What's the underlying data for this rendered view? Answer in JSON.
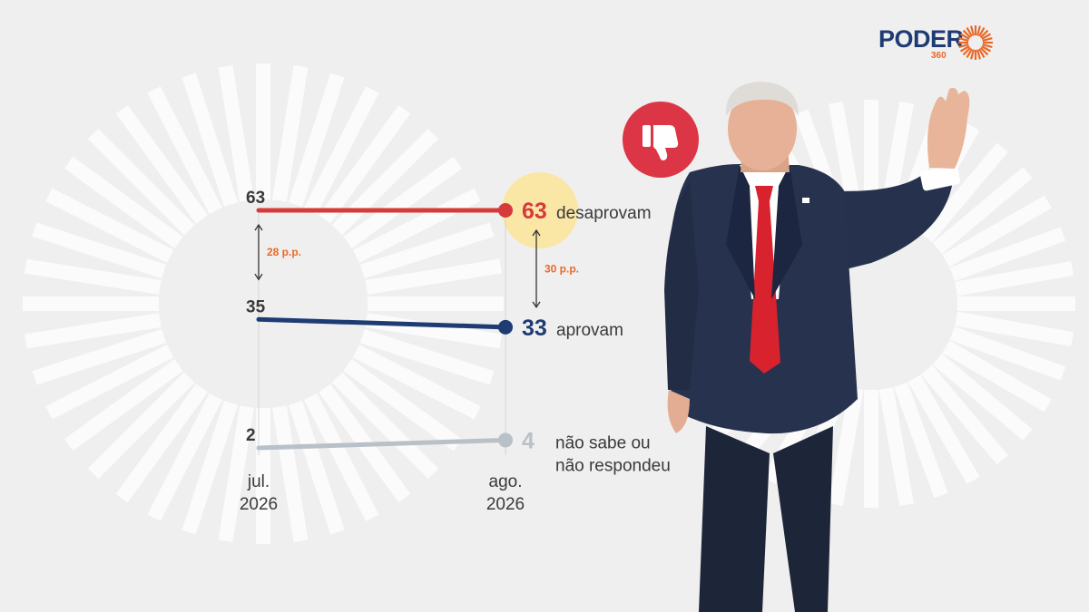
{
  "brand": {
    "name": "PODER",
    "sub": "360",
    "color": "#1f3b73",
    "accent": "#e86a2a"
  },
  "icon": {
    "name": "thumbs-down-icon",
    "color": "#dc3545"
  },
  "chart_data": {
    "type": "line",
    "title": "",
    "xlabel": "",
    "ylabel": "",
    "categories": [
      [
        "jul.",
        "2026"
      ],
      [
        "ago.",
        "2026"
      ]
    ],
    "series": [
      {
        "name": "desaprovam",
        "values": [
          63,
          63
        ],
        "color": "#d63a3a",
        "highlight": true
      },
      {
        "name": "aprovam",
        "values": [
          35,
          33
        ],
        "color": "#1f3b73"
      },
      {
        "name": "não sabe ou não respondeu",
        "label_lines": [
          "não sabe ou",
          "não respondeu"
        ],
        "values": [
          2,
          4
        ],
        "color": "#b9c1c8"
      }
    ],
    "annotations": [
      {
        "text": "28 p.p.",
        "at": "jul. 2026",
        "from": "desaprovam",
        "to": "aprovam"
      },
      {
        "text": "30 p.p.",
        "at": "ago. 2026",
        "from": "desaprovam",
        "to": "aprovam"
      }
    ],
    "grid": false,
    "legend": "none"
  }
}
